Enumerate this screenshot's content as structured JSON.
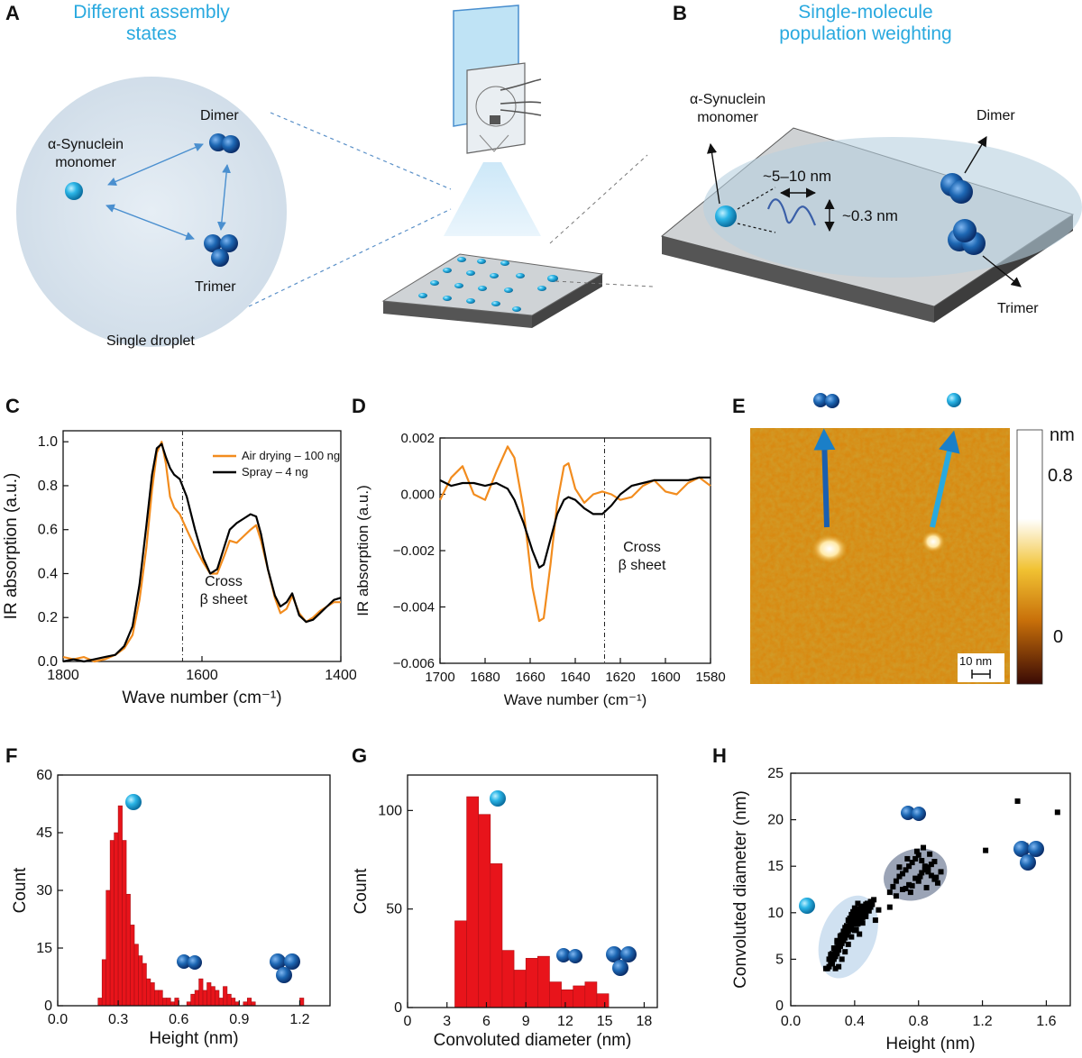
{
  "panels": {
    "A": {
      "letter": "A",
      "title_line1": "Different assembly",
      "title_line2": "states",
      "monomer_line1": "α-Synuclein",
      "monomer_line2": "monomer",
      "dimer": "Dimer",
      "trimer": "Trimer",
      "droplet": "Single droplet"
    },
    "B": {
      "letter": "B",
      "title_line1": "Single-molecule",
      "title_line2": "population weighting",
      "monomer_line1": "α-Synuclein",
      "monomer_line2": "monomer",
      "dimer": "Dimer",
      "trimer": "Trimer",
      "width_label": "~5–10 nm",
      "height_label": "~0.3 nm"
    },
    "C": {
      "letter": "C",
      "annotation_line1": "Cross",
      "annotation_line2": "β sheet"
    },
    "D": {
      "letter": "D",
      "annotation_line1": "Cross",
      "annotation_line2": "β sheet"
    },
    "E": {
      "letter": "E",
      "colorbar_unit": "nm",
      "colorbar_ticks": [
        "0.8",
        "0"
      ],
      "scalebar": "10 nm"
    },
    "F": {
      "letter": "F"
    },
    "G": {
      "letter": "G"
    },
    "H": {
      "letter": "H"
    }
  },
  "colors": {
    "orange": "#f28c1e",
    "black": "#000000",
    "red": "#e8141b",
    "accent_blue": "#29a9df",
    "bead_blue": "#1d67b3"
  },
  "chart_data": [
    {
      "id": "C",
      "type": "line",
      "xlabel": "Wave number (cm⁻¹)",
      "ylabel": "IR absorption (a.u.)",
      "xlim": [
        1800,
        1400
      ],
      "ylim": [
        0,
        1.05
      ],
      "xticks": [
        1800,
        1600,
        1400
      ],
      "yticks": [
        "0.0",
        "0.2",
        "0.4",
        "0.6",
        "0.8",
        "1.0"
      ],
      "ytick_values": [
        0,
        0.2,
        0.4,
        0.6,
        0.8,
        1.0
      ],
      "vline": 1628,
      "legend_position": "top-right",
      "series": [
        {
          "name": "Air drying – 100 ng",
          "color": "#f28c1e",
          "x": [
            1800,
            1785,
            1770,
            1755,
            1740,
            1725,
            1712,
            1700,
            1690,
            1680,
            1672,
            1665,
            1658,
            1652,
            1646,
            1640,
            1632,
            1622,
            1610,
            1598,
            1588,
            1578,
            1568,
            1560,
            1550,
            1540,
            1530,
            1522,
            1515,
            1505,
            1495,
            1487,
            1478,
            1470,
            1460,
            1450,
            1440,
            1430,
            1420,
            1410,
            1400
          ],
          "y": [
            0.02,
            0.01,
            0.02,
            0.0,
            0.01,
            0.03,
            0.06,
            0.12,
            0.28,
            0.52,
            0.78,
            0.95,
            1.0,
            0.9,
            0.75,
            0.7,
            0.67,
            0.6,
            0.52,
            0.45,
            0.4,
            0.4,
            0.48,
            0.55,
            0.54,
            0.57,
            0.6,
            0.62,
            0.55,
            0.42,
            0.29,
            0.22,
            0.24,
            0.3,
            0.22,
            0.18,
            0.2,
            0.23,
            0.25,
            0.27,
            0.27
          ]
        },
        {
          "name": "Spray – 4 ng",
          "color": "#000000",
          "x": [
            1800,
            1785,
            1770,
            1755,
            1740,
            1725,
            1712,
            1700,
            1690,
            1680,
            1672,
            1665,
            1658,
            1652,
            1646,
            1640,
            1632,
            1622,
            1610,
            1598,
            1588,
            1578,
            1568,
            1560,
            1550,
            1540,
            1530,
            1522,
            1515,
            1505,
            1495,
            1487,
            1478,
            1470,
            1460,
            1450,
            1440,
            1430,
            1420,
            1410,
            1400
          ],
          "y": [
            0.0,
            0.01,
            0.0,
            0.01,
            0.02,
            0.03,
            0.07,
            0.16,
            0.35,
            0.62,
            0.85,
            0.97,
            0.99,
            0.93,
            0.88,
            0.85,
            0.83,
            0.75,
            0.6,
            0.47,
            0.4,
            0.42,
            0.52,
            0.6,
            0.63,
            0.65,
            0.67,
            0.66,
            0.58,
            0.42,
            0.3,
            0.25,
            0.27,
            0.31,
            0.21,
            0.18,
            0.19,
            0.22,
            0.25,
            0.28,
            0.29
          ]
        }
      ]
    },
    {
      "id": "D",
      "type": "line",
      "xlabel": "Wave number (cm⁻¹)",
      "ylabel": "IR absorption (a.u.)",
      "xlim": [
        1700,
        1580
      ],
      "ylim": [
        -0.006,
        0.002
      ],
      "xticks": [
        1700,
        1680,
        1660,
        1640,
        1620,
        1600,
        1580
      ],
      "yticks": [
        "0.002",
        "0.000",
        "−0.002",
        "−0.004",
        "−0.006"
      ],
      "ytick_values": [
        0.002,
        0.0,
        -0.002,
        -0.004,
        -0.006
      ],
      "vline": 1627,
      "series": [
        {
          "name": "Air drying – 100 ng",
          "color": "#f28c1e",
          "x": [
            1700,
            1695,
            1690,
            1685,
            1680,
            1675,
            1670,
            1667,
            1663,
            1659,
            1656,
            1654,
            1651,
            1648,
            1645,
            1643,
            1640,
            1636,
            1632,
            1628,
            1624,
            1620,
            1615,
            1610,
            1605,
            1600,
            1595,
            1590,
            1585,
            1580
          ],
          "y": [
            -0.0002,
            0.0006,
            0.001,
            0.0,
            -0.0002,
            0.0008,
            0.0017,
            0.0013,
            -0.0005,
            -0.0033,
            -0.0045,
            -0.0044,
            -0.0025,
            -0.0003,
            0.001,
            0.0011,
            0.0002,
            -0.0003,
            0.0,
            0.0001,
            0.0,
            -0.0002,
            -0.0001,
            0.0003,
            0.0005,
            0.0001,
            0.0,
            0.0004,
            0.0006,
            0.0003
          ]
        },
        {
          "name": "Spray – 4 ng",
          "color": "#000000",
          "x": [
            1700,
            1695,
            1690,
            1685,
            1680,
            1675,
            1670,
            1667,
            1663,
            1659,
            1656,
            1654,
            1651,
            1648,
            1645,
            1643,
            1640,
            1636,
            1632,
            1628,
            1624,
            1620,
            1615,
            1610,
            1605,
            1600,
            1595,
            1590,
            1585,
            1580
          ],
          "y": [
            0.0005,
            0.0003,
            0.0004,
            0.0004,
            0.0003,
            0.0004,
            0.0002,
            -0.0002,
            -0.001,
            -0.002,
            -0.0026,
            -0.0025,
            -0.0016,
            -0.0007,
            -0.0002,
            -0.0001,
            -0.0002,
            -0.0005,
            -0.0007,
            -0.0007,
            -0.0004,
            0.0,
            0.0003,
            0.0004,
            0.0005,
            0.0005,
            0.0005,
            0.0005,
            0.0006,
            0.0006
          ]
        }
      ]
    },
    {
      "id": "F",
      "type": "bar",
      "xlabel": "Height (nm)",
      "ylabel": "Count",
      "xlim": [
        0.0,
        1.35
      ],
      "ylim": [
        0,
        60
      ],
      "xticks": [
        "0.0",
        "0.3",
        "0.6",
        "0.9",
        "1.2"
      ],
      "xtick_values": [
        0.0,
        0.3,
        0.6,
        0.9,
        1.2
      ],
      "yticks": [
        0,
        15,
        30,
        45,
        60
      ],
      "color": "#e8141b",
      "bin_width": 0.02,
      "bin_starts": [
        0.2,
        0.22,
        0.24,
        0.26,
        0.28,
        0.3,
        0.32,
        0.34,
        0.36,
        0.38,
        0.4,
        0.42,
        0.44,
        0.46,
        0.48,
        0.5,
        0.52,
        0.54,
        0.56,
        0.58,
        0.64,
        0.66,
        0.68,
        0.7,
        0.72,
        0.74,
        0.76,
        0.78,
        0.8,
        0.82,
        0.84,
        0.86,
        0.88,
        0.92,
        0.94,
        0.96,
        1.2
      ],
      "values": [
        2,
        12,
        30,
        43,
        45,
        52,
        43,
        29,
        21,
        16,
        13,
        11,
        7,
        6,
        4,
        4,
        2,
        2,
        1,
        2,
        1,
        3,
        4,
        7,
        4,
        6,
        5,
        4,
        2,
        5,
        3,
        2,
        1,
        1,
        2,
        1,
        2
      ]
    },
    {
      "id": "G",
      "type": "bar",
      "xlabel": "Convoluted diameter (nm)",
      "ylabel": "Count",
      "xlim": [
        0,
        19
      ],
      "ylim": [
        0,
        118
      ],
      "xticks": [
        0,
        3,
        6,
        9,
        12,
        15,
        18
      ],
      "yticks": [
        0,
        50,
        100
      ],
      "color": "#e8141b",
      "bin_width": 0.9,
      "bin_starts": [
        3.6,
        4.5,
        5.4,
        6.3,
        7.2,
        8.1,
        9.0,
        9.9,
        10.8,
        11.7,
        12.6,
        13.5,
        14.4
      ],
      "values": [
        44,
        107,
        98,
        73,
        29,
        19,
        25,
        26,
        13,
        9,
        11,
        13,
        7
      ]
    },
    {
      "id": "H",
      "type": "scatter",
      "xlabel": "Height (nm)",
      "ylabel": "Convoluted diameter (nm)",
      "xlim": [
        0.0,
        1.75
      ],
      "ylim": [
        0,
        25
      ],
      "xticks": [
        "0.0",
        "0.4",
        "0.8",
        "1.2",
        "1.6"
      ],
      "xtick_values": [
        0.0,
        0.4,
        0.8,
        1.2,
        1.6
      ],
      "yticks": [
        0,
        5,
        10,
        15,
        20,
        25
      ],
      "color": "#000000",
      "x": [
        0.22,
        0.24,
        0.26,
        0.27,
        0.28,
        0.29,
        0.3,
        0.31,
        0.32,
        0.33,
        0.34,
        0.35,
        0.36,
        0.37,
        0.38,
        0.39,
        0.4,
        0.41,
        0.42,
        0.43,
        0.44,
        0.45,
        0.46,
        0.47,
        0.48,
        0.5,
        0.52,
        0.25,
        0.27,
        0.29,
        0.31,
        0.33,
        0.35,
        0.37,
        0.39,
        0.41,
        0.43,
        0.45,
        0.47,
        0.49,
        0.26,
        0.28,
        0.3,
        0.32,
        0.34,
        0.36,
        0.38,
        0.4,
        0.42,
        0.44,
        0.23,
        0.25,
        0.27,
        0.29,
        0.31,
        0.33,
        0.35,
        0.37,
        0.39,
        0.41,
        0.28,
        0.3,
        0.32,
        0.34,
        0.36,
        0.38,
        0.4,
        0.42,
        0.44,
        0.46,
        0.48,
        0.5,
        0.24,
        0.26,
        0.28,
        0.3,
        0.32,
        0.34,
        0.36,
        0.38,
        0.4,
        0.42,
        0.44,
        0.46,
        0.29,
        0.31,
        0.33,
        0.35,
        0.37,
        0.39,
        0.41,
        0.43,
        0.45,
        0.47,
        0.49,
        0.51,
        0.53,
        0.55,
        0.62,
        0.64,
        0.66,
        0.68,
        0.7,
        0.72,
        0.74,
        0.76,
        0.78,
        0.8,
        0.82,
        0.84,
        0.86,
        0.88,
        0.9,
        0.92,
        0.7,
        0.74,
        0.78,
        0.82,
        0.86,
        0.9,
        0.66,
        0.72,
        0.76,
        0.8,
        0.84,
        0.88,
        0.94,
        0.68,
        0.73,
        0.79,
        0.83,
        0.87,
        0.91,
        0.75,
        0.81,
        0.85,
        0.62,
        1.22,
        1.42,
        1.47,
        1.67
      ],
      "y": [
        4,
        4.2,
        4.5,
        5,
        5.3,
        5.6,
        6,
        6.4,
        6.7,
        7,
        7.3,
        7.6,
        8,
        8.2,
        8.5,
        8.8,
        9.1,
        9.3,
        9.6,
        9.9,
        10.1,
        10.4,
        10.6,
        10.9,
        11,
        11.2,
        11.4,
        5.5,
        6.2,
        6.8,
        7.4,
        8,
        8.5,
        9,
        9.5,
        10,
        10.4,
        9.5,
        10,
        10.8,
        4.8,
        5.7,
        6.4,
        7.1,
        7.8,
        8.3,
        8.9,
        9.4,
        9.8,
        10.2,
        4,
        4.6,
        5.2,
        5.9,
        6.5,
        7.2,
        7.9,
        8.6,
        9.2,
        9.7,
        4,
        4.2,
        5,
        5.8,
        6.6,
        7.4,
        8.1,
        8.8,
        9.3,
        9.9,
        10.3,
        10.6,
        5,
        5.6,
        6.1,
        6.9,
        7.6,
        8.4,
        9.2,
        9.8,
        10.5,
        11,
        10.7,
        10,
        7,
        7.5,
        7.9,
        8.6,
        9.4,
        10.1,
        8.2,
        7.7,
        8.9,
        9.6,
        10.2,
        10.9,
        9.2,
        10.3,
        12.2,
        12.8,
        13.4,
        13.9,
        14.2,
        14.6,
        15,
        15.4,
        15.8,
        16.2,
        15.6,
        15,
        14.4,
        14,
        13.6,
        13.2,
        12.5,
        13,
        13.7,
        14.3,
        14.9,
        15.5,
        11.8,
        12.6,
        12.9,
        13.4,
        14.6,
        15.2,
        14.4,
        14.9,
        15.8,
        16.6,
        17,
        16.3,
        13.8,
        12.2,
        13.9,
        12.7,
        10.6,
        16.7,
        22,
        17.2,
        20.8
      ]
    }
  ]
}
